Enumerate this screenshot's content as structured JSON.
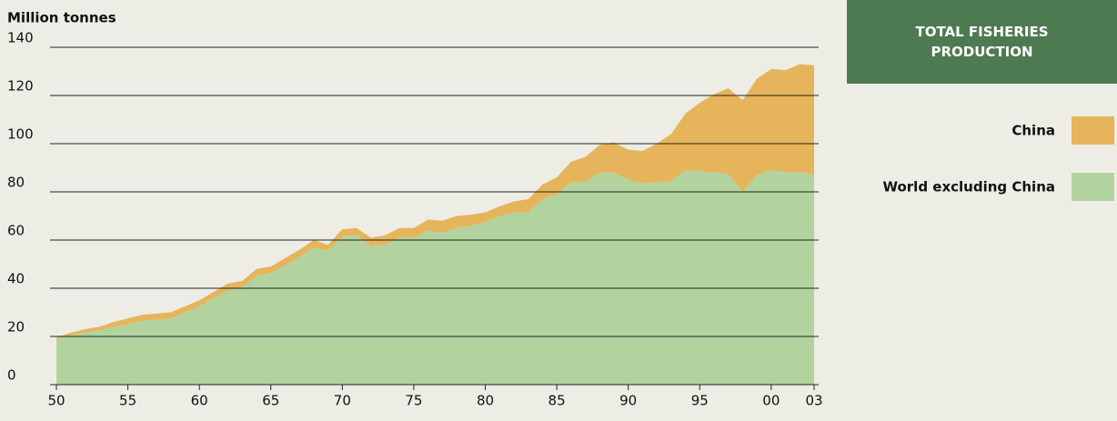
{
  "chart_data": {
    "type": "stacked_area",
    "title": "TOTAL FISHERIES PRODUCTION",
    "y_label": "Million tonnes",
    "x": [
      1950,
      1951,
      1952,
      1953,
      1954,
      1955,
      1956,
      1957,
      1958,
      1959,
      1960,
      1961,
      1962,
      1963,
      1964,
      1965,
      1966,
      1967,
      1968,
      1969,
      1970,
      1971,
      1972,
      1973,
      1974,
      1975,
      1976,
      1977,
      1978,
      1979,
      1980,
      1981,
      1982,
      1983,
      1984,
      1985,
      1986,
      1987,
      1988,
      1989,
      1990,
      1991,
      1992,
      1993,
      1994,
      1995,
      1996,
      1997,
      1998,
      1999,
      2000,
      2001,
      2002,
      2003
    ],
    "series": [
      {
        "name": "World excluding China",
        "color": "#b2d39e",
        "values": [
          19,
          20.5,
          21.5,
          22.5,
          24,
          25,
          26.5,
          27,
          27.5,
          30,
          32.5,
          36,
          39,
          40.5,
          45,
          46.5,
          49.5,
          53,
          57,
          55.5,
          61.5,
          62,
          57.5,
          58,
          61,
          61,
          64,
          63,
          65,
          66,
          67.5,
          70,
          71.5,
          71.5,
          77,
          79,
          84,
          84,
          88,
          88,
          85,
          83.5,
          84,
          84.5,
          89,
          88.5,
          88,
          87.5,
          80,
          87,
          89,
          88,
          88.5,
          87
        ]
      },
      {
        "name": "China",
        "color": "#e6b45a",
        "values": [
          0.5,
          1,
          1.5,
          1.5,
          2,
          2.5,
          2.5,
          2.5,
          2.5,
          2.5,
          2.5,
          2.5,
          3,
          2.5,
          3,
          2.5,
          3,
          3,
          3,
          2.5,
          3,
          3,
          3.5,
          4,
          4,
          4,
          4.5,
          5,
          5,
          4.5,
          4,
          4,
          4.5,
          5.5,
          6,
          7,
          8.5,
          10.5,
          11.5,
          12.5,
          12.5,
          13.5,
          16,
          19.5,
          23.5,
          28.5,
          32.5,
          35.5,
          38,
          40,
          42,
          42.5,
          44.5,
          45.5
        ]
      }
    ],
    "xlim": [
      1950,
      2003
    ],
    "xticks": [
      {
        "value": 1950,
        "label": "50"
      },
      {
        "value": 1955,
        "label": "55"
      },
      {
        "value": 1960,
        "label": "60"
      },
      {
        "value": 1965,
        "label": "65"
      },
      {
        "value": 1970,
        "label": "70"
      },
      {
        "value": 1975,
        "label": "75"
      },
      {
        "value": 1980,
        "label": "80"
      },
      {
        "value": 1985,
        "label": "85"
      },
      {
        "value": 1990,
        "label": "90"
      },
      {
        "value": 1995,
        "label": "95"
      },
      {
        "value": 2000,
        "label": "00"
      },
      {
        "value": 2003,
        "label": "03"
      }
    ],
    "ylim": [
      0,
      140
    ],
    "yticks": [
      0,
      20,
      40,
      60,
      80,
      100,
      120,
      140
    ],
    "grid": true
  }
}
